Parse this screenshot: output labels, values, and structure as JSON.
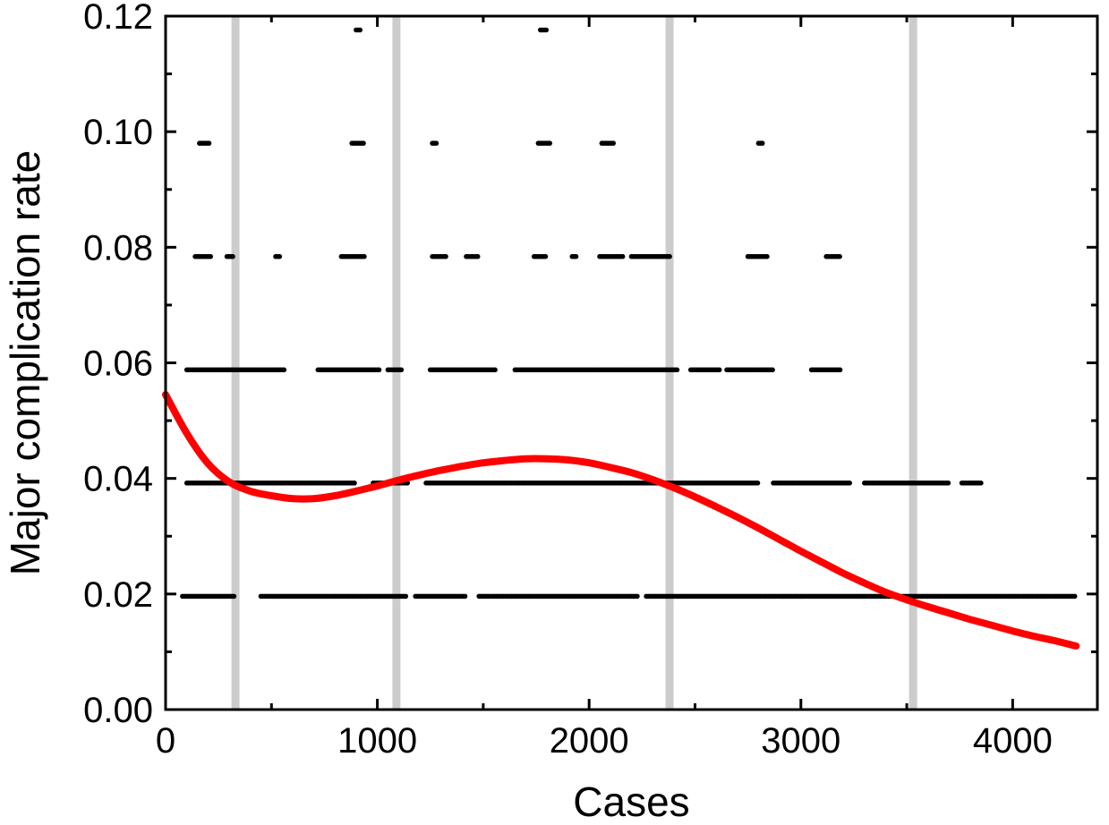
{
  "chart_data": {
    "type": "scatter",
    "title": "",
    "xlabel": "Cases",
    "ylabel": "Major complication rate",
    "xlim": [
      0,
      4400
    ],
    "ylim": [
      0,
      0.12
    ],
    "x_ticks": [
      0,
      1000,
      2000,
      3000,
      4000
    ],
    "x_tick_labels": [
      "0",
      "1000",
      "2000",
      "3000",
      "4000"
    ],
    "y_ticks": [
      0,
      0.02,
      0.04,
      0.06,
      0.08,
      0.1,
      0.12
    ],
    "y_tick_labels": [
      "0.00",
      "0.02",
      "0.04",
      "0.06",
      "0.08",
      "0.10",
      "0.12"
    ],
    "grid": false,
    "legend": "none",
    "colors": {
      "points": "#000000",
      "fit_curve": "#ff0000",
      "reference_lines": "#cccccc"
    },
    "reference_lines_x": [
      330,
      1090,
      2380,
      3530
    ],
    "series": [
      {
        "kind": "scatter",
        "point_groups": [
          {
            "y": 0.0196,
            "x_ranges": [
              [
                80,
                330
              ],
              [
                450,
                1140
              ],
              [
                1180,
                1420
              ],
              [
                1480,
                2230
              ],
              [
                2270,
                3600
              ],
              [
                3600,
                4300
              ]
            ]
          },
          {
            "y": 0.0392,
            "x_ranges": [
              [
                100,
                900
              ],
              [
                980,
                1150
              ],
              [
                1230,
                2800
              ],
              [
                2870,
                3230
              ],
              [
                3300,
                3700
              ],
              [
                3760,
                3850
              ]
            ]
          },
          {
            "y": 0.0588,
            "x_ranges": [
              [
                100,
                560
              ],
              [
                720,
                1010
              ],
              [
                1050,
                1120
              ],
              [
                1250,
                1560
              ],
              [
                1650,
                2420
              ],
              [
                2480,
                2620
              ],
              [
                2650,
                2870
              ],
              [
                3050,
                3190
              ]
            ]
          },
          {
            "y": 0.0784,
            "x_ranges": [
              [
                140,
                220
              ],
              [
                290,
                320
              ],
              [
                520,
                540
              ],
              [
                830,
                940
              ],
              [
                1260,
                1330
              ],
              [
                1420,
                1480
              ],
              [
                1740,
                1800
              ],
              [
                1920,
                1940
              ],
              [
                2050,
                2160
              ],
              [
                2200,
                2380
              ],
              [
                2750,
                2840
              ],
              [
                3120,
                3190
              ]
            ]
          },
          {
            "y": 0.098,
            "x_ranges": [
              [
                160,
                210
              ],
              [
                880,
                940
              ],
              [
                1260,
                1280
              ],
              [
                1760,
                1820
              ],
              [
                2060,
                2120
              ],
              [
                2800,
                2820
              ]
            ]
          },
          {
            "y": 0.1176,
            "x_ranges": [
              [
                900,
                920
              ],
              [
                1770,
                1800
              ]
            ]
          }
        ]
      },
      {
        "kind": "line",
        "points": [
          [
            0,
            0.0545
          ],
          [
            100,
            0.0478
          ],
          [
            200,
            0.0426
          ],
          [
            300,
            0.0394
          ],
          [
            400,
            0.0378
          ],
          [
            500,
            0.037
          ],
          [
            600,
            0.0365
          ],
          [
            700,
            0.0365
          ],
          [
            800,
            0.037
          ],
          [
            900,
            0.0378
          ],
          [
            1000,
            0.0387
          ],
          [
            1100,
            0.0397
          ],
          [
            1200,
            0.0406
          ],
          [
            1300,
            0.0414
          ],
          [
            1400,
            0.0421
          ],
          [
            1500,
            0.0427
          ],
          [
            1600,
            0.0431
          ],
          [
            1700,
            0.0434
          ],
          [
            1800,
            0.0434
          ],
          [
            1900,
            0.0432
          ],
          [
            2000,
            0.0427
          ],
          [
            2100,
            0.0419
          ],
          [
            2200,
            0.041
          ],
          [
            2300,
            0.0398
          ],
          [
            2400,
            0.0384
          ],
          [
            2500,
            0.0368
          ],
          [
            2600,
            0.0351
          ],
          [
            2700,
            0.0333
          ],
          [
            2800,
            0.0314
          ],
          [
            2900,
            0.0294
          ],
          [
            3000,
            0.0274
          ],
          [
            3100,
            0.0255
          ],
          [
            3200,
            0.0236
          ],
          [
            3300,
            0.0219
          ],
          [
            3400,
            0.0203
          ],
          [
            3500,
            0.019
          ],
          [
            3600,
            0.0178
          ],
          [
            3700,
            0.0167
          ],
          [
            3800,
            0.0156
          ],
          [
            3900,
            0.0146
          ],
          [
            4000,
            0.0136
          ],
          [
            4100,
            0.0127
          ],
          [
            4200,
            0.0119
          ],
          [
            4300,
            0.011
          ]
        ]
      }
    ]
  }
}
